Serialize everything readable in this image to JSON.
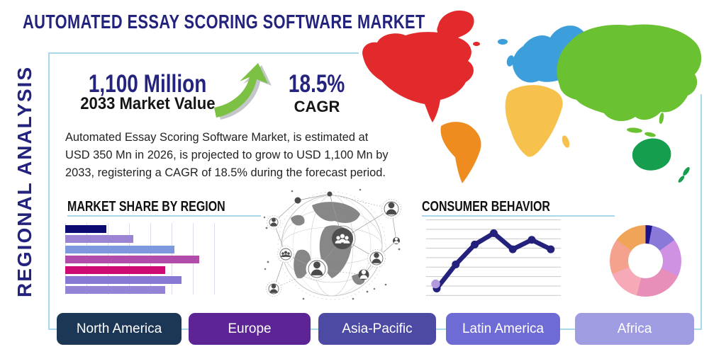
{
  "page": {
    "title": "AUTOMATED ESSAY SCORING SOFTWARE MARKET",
    "side_label": "REGIONAL ANALYSIS",
    "background": "#ffffff",
    "panel_border_color": "#a9d8ea"
  },
  "stats": {
    "market_value": "1,100 Million",
    "market_value_caption": "2033 Market Value",
    "cagr_value": "18.5%",
    "cagr_caption": "CAGR",
    "arrow_icon": "growth-arrow-up-right",
    "arrow_color": "#7cc143"
  },
  "description": "Automated Essay Scoring Software Market, is estimated at USD 350 Mn in 2026, is projected to grow to USD 1,100 Mn by 2033, registering a CAGR of 18.5% during the forecast period.",
  "sections": {
    "market_share_title": "MARKET SHARE BY REGION",
    "consumer_behavior_title": "CONSUMER BEHAVIOR"
  },
  "region_buttons": [
    {
      "label": "North America",
      "color": "#1c3655"
    },
    {
      "label": "Europe",
      "color": "#5c2495"
    },
    {
      "label": "Asia-Pacific",
      "color": "#4d4aa4"
    },
    {
      "label": "Latin America",
      "color": "#6f6bd4"
    },
    {
      "label": "Africa",
      "color": "#a09ce2"
    }
  ],
  "map": {
    "illustration": "world-map-colored-by-region",
    "region_colors": {
      "north_america": "#e22a2c",
      "south_america": "#ef8c1f",
      "europe": "#3d9edc",
      "africa": "#f6c24d",
      "asia": "#6ac131",
      "oceania": "#149e4e"
    }
  },
  "chart_data": [
    {
      "type": "bar",
      "title": "MARKET SHARE BY REGION",
      "orientation": "horizontal",
      "values": [
        28,
        46,
        74,
        91,
        68,
        79,
        68
      ],
      "unit": "percent of axis width",
      "bar_colors": [
        "#0b0b72",
        "#9b84d4",
        "#7d98de",
        "#b14cab",
        "#cd0a72",
        "#8779d2",
        "#9583d6"
      ],
      "grid": "vertical",
      "axis_labels": "none"
    },
    {
      "type": "line",
      "title": "CONSUMER BEHAVIOR",
      "x": [
        1,
        2,
        3,
        4,
        5,
        6,
        7
      ],
      "values": [
        0.75,
        3.3,
        5.4,
        6.6,
        4.9,
        5.9,
        4.9
      ],
      "ylim": [
        0,
        8
      ],
      "line_color": "#23217b",
      "marker_color": "#23217b",
      "start_marker_highlight_color": "#b39ae0",
      "grid": "horizontal",
      "axis_labels": "none"
    },
    {
      "type": "donut",
      "values": [
        3,
        12,
        17,
        22,
        15,
        16,
        15
      ],
      "colors": [
        "#1b128e",
        "#8a79d8",
        "#cf92e2",
        "#e78fb9",
        "#f6aab8",
        "#f4a28e",
        "#efa457"
      ],
      "labels": "none"
    }
  ]
}
